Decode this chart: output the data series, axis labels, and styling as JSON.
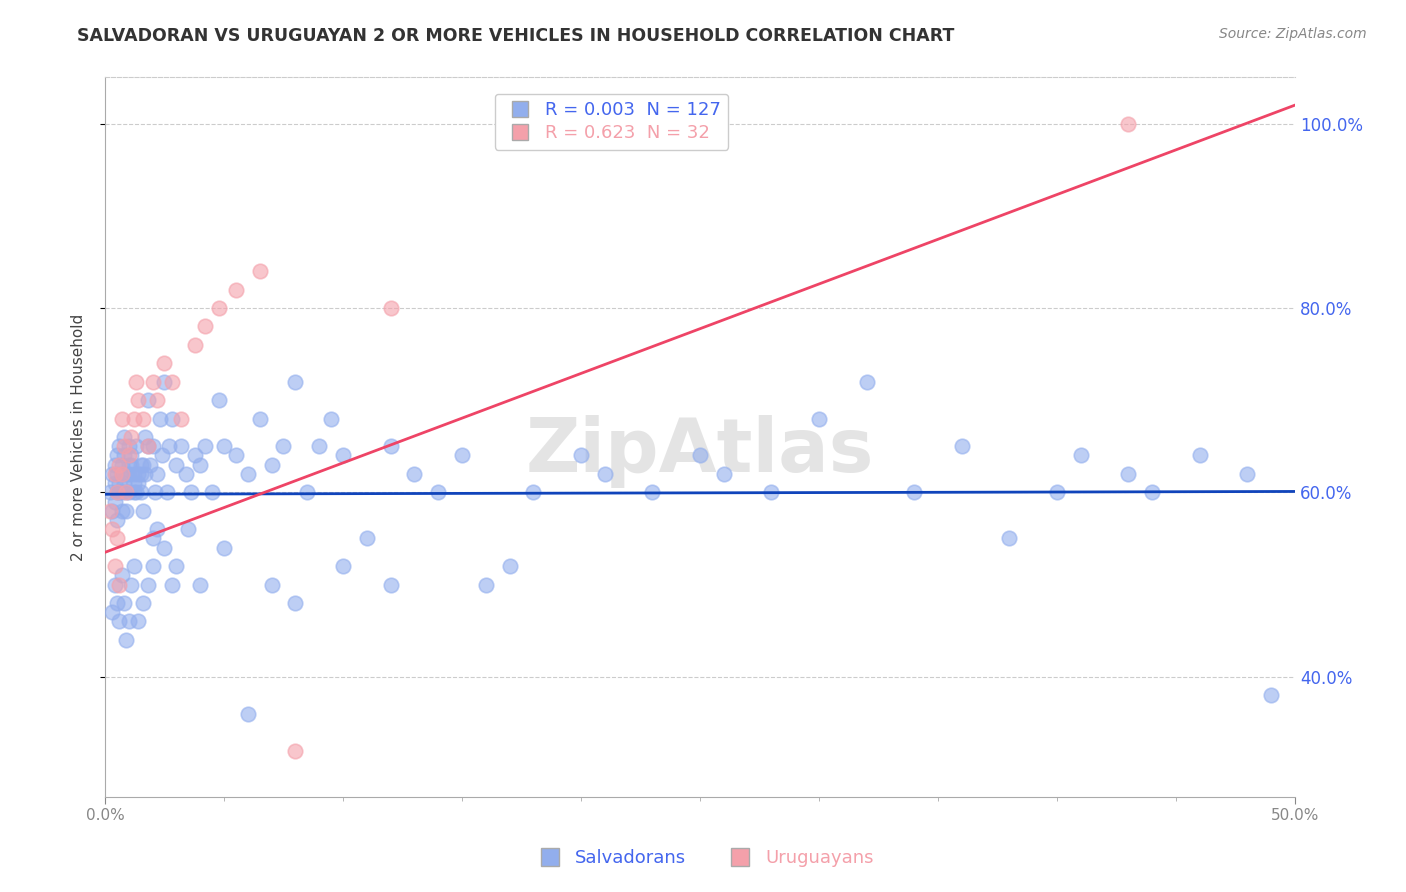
{
  "title": "SALVADORAN VS URUGUAYAN 2 OR MORE VEHICLES IN HOUSEHOLD CORRELATION CHART",
  "source_text": "Source: ZipAtlas.com",
  "ylabel": "2 or more Vehicles in Household",
  "legend_salvadoran": "Salvadorans",
  "legend_uruguayan": "Uruguayans",
  "R_salvadoran": 0.003,
  "N_salvadoran": 127,
  "R_uruguayan": 0.623,
  "N_uruguayan": 32,
  "color_salvadoran": "#92AEED",
  "color_uruguayan": "#F4A0AA",
  "color_line_salvadoran": "#1044BB",
  "color_line_uruguayan": "#EE4466",
  "color_axis_labels": "#4466EE",
  "color_grid": "#CCCCCC",
  "color_title": "#333333",
  "x_min": 0.0,
  "x_max": 0.5,
  "y_min": 0.27,
  "y_max": 1.05,
  "watermark": "ZipAtlas",
  "sal_line_y0": 0.598,
  "sal_line_y1": 0.601,
  "uru_line_y0": 0.535,
  "uru_line_y1": 1.02,
  "salvadoran_x": [
    0.002,
    0.003,
    0.003,
    0.004,
    0.004,
    0.004,
    0.005,
    0.005,
    0.005,
    0.005,
    0.006,
    0.006,
    0.006,
    0.007,
    0.007,
    0.007,
    0.007,
    0.008,
    0.008,
    0.008,
    0.009,
    0.009,
    0.009,
    0.01,
    0.01,
    0.01,
    0.01,
    0.011,
    0.011,
    0.012,
    0.012,
    0.012,
    0.013,
    0.013,
    0.014,
    0.014,
    0.015,
    0.015,
    0.015,
    0.016,
    0.016,
    0.017,
    0.017,
    0.018,
    0.018,
    0.019,
    0.02,
    0.02,
    0.021,
    0.022,
    0.023,
    0.024,
    0.025,
    0.026,
    0.027,
    0.028,
    0.03,
    0.032,
    0.034,
    0.036,
    0.038,
    0.04,
    0.042,
    0.045,
    0.048,
    0.05,
    0.055,
    0.06,
    0.065,
    0.07,
    0.075,
    0.08,
    0.085,
    0.09,
    0.095,
    0.1,
    0.11,
    0.12,
    0.13,
    0.14,
    0.15,
    0.16,
    0.17,
    0.18,
    0.2,
    0.21,
    0.23,
    0.25,
    0.26,
    0.28,
    0.3,
    0.32,
    0.34,
    0.36,
    0.38,
    0.4,
    0.41,
    0.43,
    0.44,
    0.46,
    0.48,
    0.49,
    0.003,
    0.004,
    0.005,
    0.006,
    0.007,
    0.008,
    0.009,
    0.01,
    0.011,
    0.012,
    0.014,
    0.016,
    0.018,
    0.02,
    0.022,
    0.025,
    0.028,
    0.03,
    0.035,
    0.04,
    0.05,
    0.06,
    0.07,
    0.08,
    0.1,
    0.12
  ],
  "salvadoran_y": [
    0.6,
    0.62,
    0.58,
    0.61,
    0.63,
    0.59,
    0.64,
    0.6,
    0.57,
    0.62,
    0.65,
    0.61,
    0.6,
    0.58,
    0.63,
    0.62,
    0.6,
    0.64,
    0.66,
    0.61,
    0.62,
    0.6,
    0.58,
    0.63,
    0.65,
    0.62,
    0.6,
    0.64,
    0.63,
    0.6,
    0.62,
    0.61,
    0.6,
    0.65,
    0.62,
    0.61,
    0.63,
    0.62,
    0.6,
    0.58,
    0.63,
    0.66,
    0.62,
    0.65,
    0.7,
    0.63,
    0.65,
    0.55,
    0.6,
    0.62,
    0.68,
    0.64,
    0.72,
    0.6,
    0.65,
    0.68,
    0.63,
    0.65,
    0.62,
    0.6,
    0.64,
    0.63,
    0.65,
    0.6,
    0.7,
    0.65,
    0.64,
    0.62,
    0.68,
    0.63,
    0.65,
    0.72,
    0.6,
    0.65,
    0.68,
    0.64,
    0.55,
    0.65,
    0.62,
    0.6,
    0.64,
    0.5,
    0.52,
    0.6,
    0.64,
    0.62,
    0.6,
    0.64,
    0.62,
    0.6,
    0.68,
    0.72,
    0.6,
    0.65,
    0.55,
    0.6,
    0.64,
    0.62,
    0.6,
    0.64,
    0.62,
    0.38,
    0.47,
    0.5,
    0.48,
    0.46,
    0.51,
    0.48,
    0.44,
    0.46,
    0.5,
    0.52,
    0.46,
    0.48,
    0.5,
    0.52,
    0.56,
    0.54,
    0.5,
    0.52,
    0.56,
    0.5,
    0.54,
    0.36,
    0.5,
    0.48,
    0.52,
    0.5
  ],
  "uruguayan_x": [
    0.002,
    0.003,
    0.004,
    0.004,
    0.005,
    0.005,
    0.006,
    0.006,
    0.007,
    0.007,
    0.008,
    0.009,
    0.01,
    0.011,
    0.012,
    0.013,
    0.014,
    0.016,
    0.018,
    0.02,
    0.022,
    0.025,
    0.028,
    0.032,
    0.038,
    0.042,
    0.048,
    0.055,
    0.065,
    0.08,
    0.12,
    0.43
  ],
  "uruguayan_y": [
    0.58,
    0.56,
    0.62,
    0.52,
    0.6,
    0.55,
    0.63,
    0.5,
    0.68,
    0.62,
    0.65,
    0.6,
    0.64,
    0.66,
    0.68,
    0.72,
    0.7,
    0.68,
    0.65,
    0.72,
    0.7,
    0.74,
    0.72,
    0.68,
    0.76,
    0.78,
    0.8,
    0.82,
    0.84,
    0.32,
    0.8,
    1.0
  ]
}
